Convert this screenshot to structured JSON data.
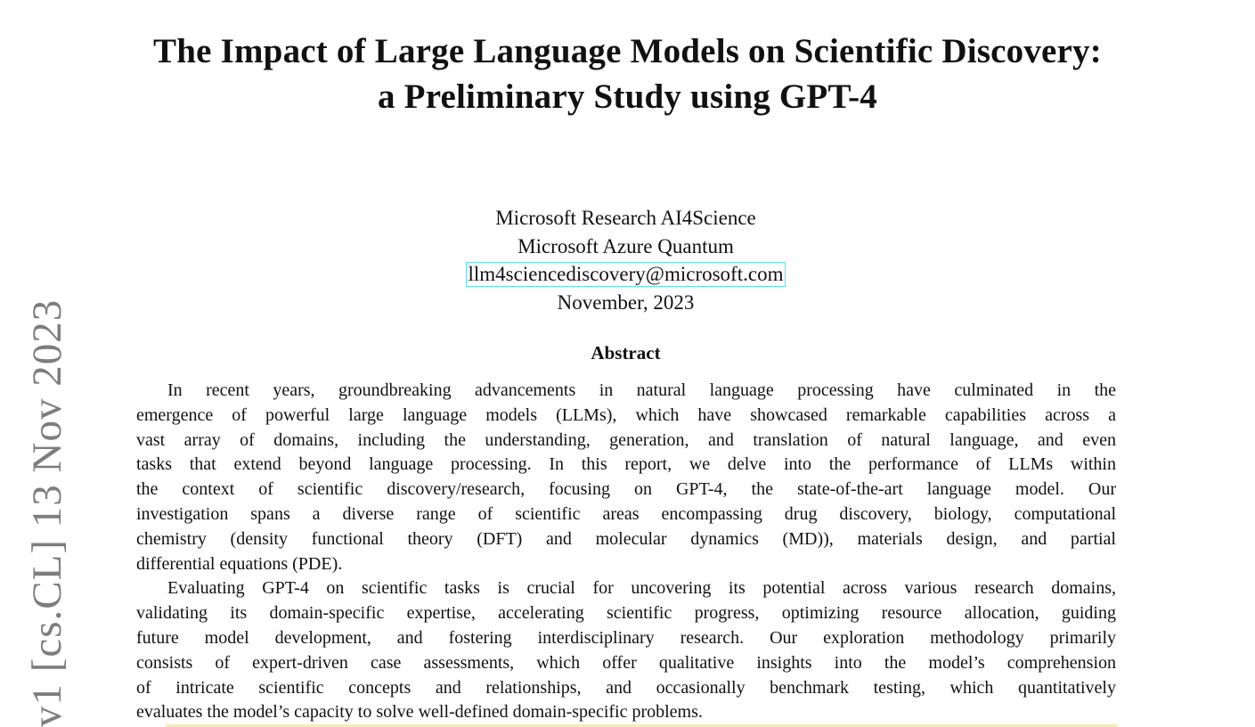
{
  "title": {
    "line1": "The Impact of Large Language Models on Scientific Discovery:",
    "line2": "a Preliminary Study using GPT-4"
  },
  "authors": {
    "affiliation1": "Microsoft Research AI4Science",
    "affiliation2": "Microsoft Azure Quantum",
    "email": "llm4sciencediscovery@microsoft.com",
    "date": "November, 2023"
  },
  "abstract": {
    "heading": "Abstract",
    "paragraph1": [
      "In recent years, groundbreaking advancements in natural language processing have culminated in the",
      "emergence of powerful large language models (LLMs), which have showcased remarkable capabilities across a",
      "vast array of domains, including the understanding, generation, and translation of natural language, and even",
      "tasks that extend beyond language processing. In this report, we delve into the performance of LLMs within",
      "the context of scientific discovery/research, focusing on GPT-4, the state-of-the-art language model. Our",
      "investigation spans a diverse range of scientific areas encompassing drug discovery, biology, computational",
      "chemistry (density functional theory (DFT) and molecular dynamics (MD)), materials design, and partial",
      "differential equations (PDE)."
    ],
    "paragraph2": [
      "Evaluating GPT-4 on scientific tasks is crucial for uncovering its potential across various research domains,",
      "validating its domain-specific expertise, accelerating scientific progress, optimizing resource allocation, guiding",
      "future model development, and fostering interdisciplinary research. Our exploration methodology primarily",
      "consists of expert-driven case assessments, which offer qualitative insights into the model’s comprehension",
      "of intricate scientific concepts and relationships, and occasionally benchmark testing, which quantitatively",
      "evaluates the model’s capacity to solve well-defined domain-specific problems."
    ]
  },
  "arxiv_stamp": "v1  [cs.CL]  13 Nov 2023"
}
